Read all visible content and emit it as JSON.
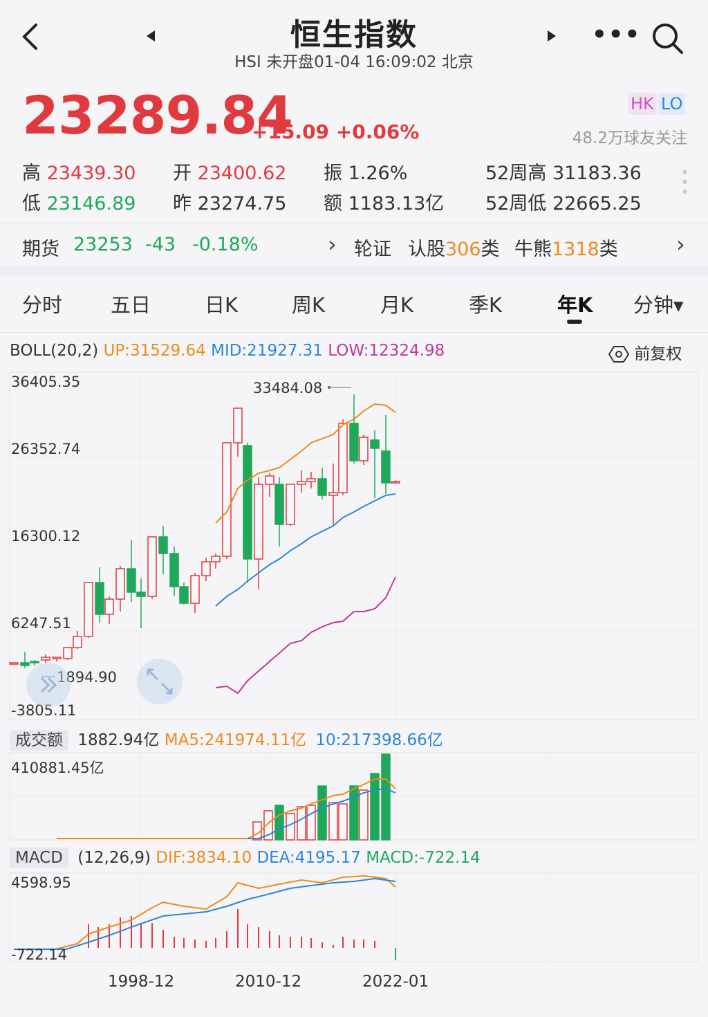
{
  "header": {
    "back_icon": "chevron-left-icon",
    "title": "恒生指数",
    "subtitle": "HSI 未开盘01-04 16:09:02 北京",
    "prev_icon": "triangle-left-icon",
    "next_icon": "triangle-right-icon",
    "more_label": "•••",
    "search_icon": "search-icon"
  },
  "quote": {
    "price": "23289.84",
    "change": "+15.09 +0.06%",
    "badge_hk": "HK",
    "badge_lo": "LO",
    "followers": "48.2万球友关注"
  },
  "stats": {
    "high_label": "高",
    "high": "23439.30",
    "open_label": "开",
    "open": "23400.62",
    "amp_label": "振",
    "amp": "1.26%",
    "w52_high_label": "52周高",
    "w52_high": "31183.36",
    "low_label": "低",
    "low": "23146.89",
    "prev_label": "昨",
    "prev": "23274.75",
    "amount_label": "额",
    "amount": "1183.13亿",
    "w52_low_label": "52周低",
    "w52_low": "22665.25"
  },
  "futures": {
    "label": "期货",
    "price": "23253",
    "change": "-43",
    "pct": "-0.18%",
    "arrow": "›",
    "warrants_label": "轮证",
    "call_label": "认股",
    "call_count": "306",
    "call_unit": "类",
    "cbbc_label": "牛熊",
    "cbbc_count": "1318",
    "cbbc_unit": "类",
    "arrow2": "›"
  },
  "tabs": [
    "分时",
    "五日",
    "日K",
    "周K",
    "月K",
    "季K",
    "年K",
    "分钟▾"
  ],
  "active_tab": 6,
  "boll": {
    "name": "BOLL(20,2)",
    "up": "UP:31529.64",
    "mid": "MID:21927.31",
    "low": "LOW:12324.98",
    "adjust": "前复权"
  },
  "price_axis": [
    "36405.35",
    "26352.74",
    "16300.12",
    "6247.51",
    "-3805.11"
  ],
  "annotations": {
    "max": "33484.08",
    "min": "1894.90"
  },
  "volume": {
    "label": "成交额",
    "value": "1882.94亿",
    "ma5": "MA5:241974.11亿",
    "ma10": "10:217398.66亿",
    "max": "410881.45亿"
  },
  "macd": {
    "label": "MACD",
    "params": "(12,26,9)",
    "dif": "DIF:3834.10",
    "dea": "DEA:4195.17",
    "macd": "MACD:-722.14",
    "max": "4598.95",
    "min": "-722.14"
  },
  "dates": [
    "1998-12",
    "2010-12",
    "2022-01"
  ],
  "colors": {
    "up": "#e03a3e",
    "down": "#1fa85a",
    "ma_orange": "#ee8a1c",
    "ma_blue": "#2b86d8",
    "ma_magenta": "#c0389a"
  }
}
